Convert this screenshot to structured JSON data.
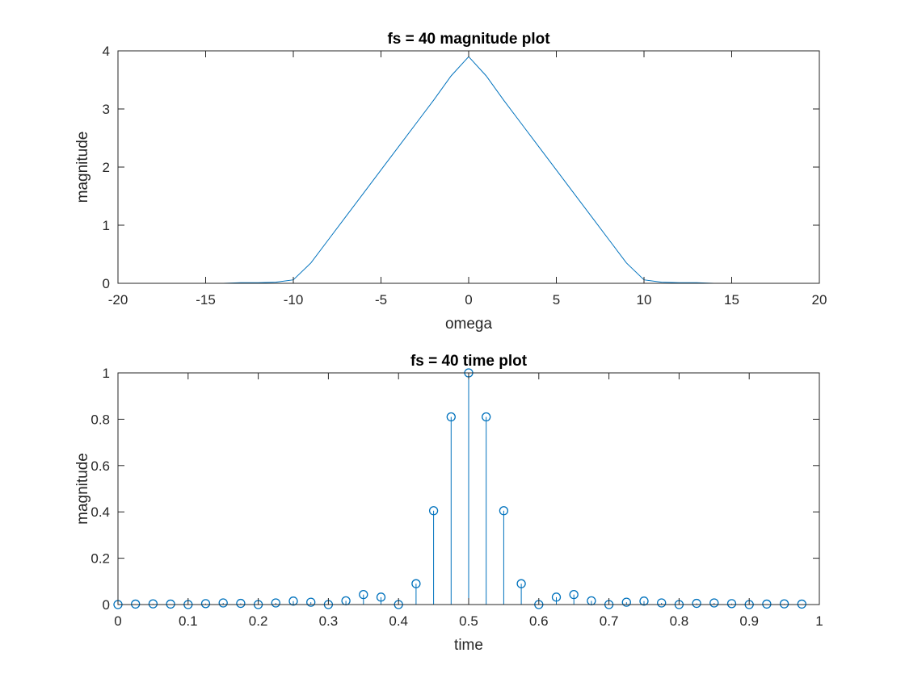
{
  "figure": {
    "background": "#ffffff"
  },
  "chart_data": [
    {
      "type": "line",
      "title": "fs = 40 magnitude plot",
      "xlabel": "omega",
      "ylabel": "magnitude",
      "xlim": [
        -20,
        20
      ],
      "ylim": [
        0,
        4
      ],
      "xticks": [
        -20,
        -15,
        -10,
        -5,
        0,
        5,
        10,
        15,
        20
      ],
      "yticks": [
        0,
        1,
        2,
        3,
        4
      ],
      "grid": false,
      "color": "#0072BD",
      "series": [
        {
          "x": [
            -20,
            -19,
            -18,
            -17,
            -16,
            -15,
            -14,
            -13,
            -12,
            -11,
            -10,
            -9,
            -8,
            -7,
            -6,
            -5,
            -4,
            -3,
            -2,
            -1,
            0,
            1,
            2,
            3,
            4,
            5,
            6,
            7,
            8,
            9,
            10,
            11,
            12,
            13,
            14,
            15,
            16,
            17,
            18,
            19
          ],
          "y": [
            0.0,
            0.0,
            0.0,
            0.0,
            0.0,
            0.0,
            0.0,
            0.01,
            0.01,
            0.02,
            0.06,
            0.35,
            0.75,
            1.15,
            1.55,
            1.95,
            2.35,
            2.75,
            3.15,
            3.57,
            3.9,
            3.57,
            3.15,
            2.75,
            2.35,
            1.95,
            1.55,
            1.15,
            0.75,
            0.35,
            0.06,
            0.02,
            0.01,
            0.01,
            0.0,
            0.0,
            0.0,
            0.0,
            0.0,
            0.0
          ]
        }
      ]
    },
    {
      "type": "stem",
      "title": "fs = 40 time plot",
      "xlabel": "time",
      "ylabel": "magnitude",
      "xlim": [
        0,
        1
      ],
      "ylim": [
        0,
        1
      ],
      "xticks": [
        0,
        0.1,
        0.2,
        0.3,
        0.4,
        0.5,
        0.6,
        0.7,
        0.8,
        0.9,
        1
      ],
      "yticks": [
        0,
        0.2,
        0.4,
        0.6,
        0.8,
        1
      ],
      "grid": false,
      "color": "#0072BD",
      "series": [
        {
          "x": [
            0,
            0.025,
            0.05,
            0.075,
            0.1,
            0.125,
            0.15,
            0.175,
            0.2,
            0.225,
            0.25,
            0.275,
            0.3,
            0.325,
            0.35,
            0.375,
            0.4,
            0.425,
            0.45,
            0.475,
            0.5,
            0.525,
            0.55,
            0.575,
            0.6,
            0.625,
            0.65,
            0.675,
            0.7,
            0.725,
            0.75,
            0.775,
            0.8,
            0.825,
            0.85,
            0.875,
            0.9,
            0.925,
            0.95,
            0.975
          ],
          "y": [
            0.0,
            0.002,
            0.003,
            0.002,
            0.0,
            0.004,
            0.007,
            0.005,
            0.0,
            0.007,
            0.015,
            0.01,
            0.0,
            0.016,
            0.043,
            0.032,
            0.0,
            0.09,
            0.405,
            0.81,
            1.0,
            0.81,
            0.405,
            0.09,
            0.0,
            0.032,
            0.043,
            0.016,
            0.0,
            0.01,
            0.015,
            0.007,
            0.0,
            0.005,
            0.007,
            0.004,
            0.0,
            0.002,
            0.003,
            0.002
          ]
        }
      ]
    }
  ]
}
